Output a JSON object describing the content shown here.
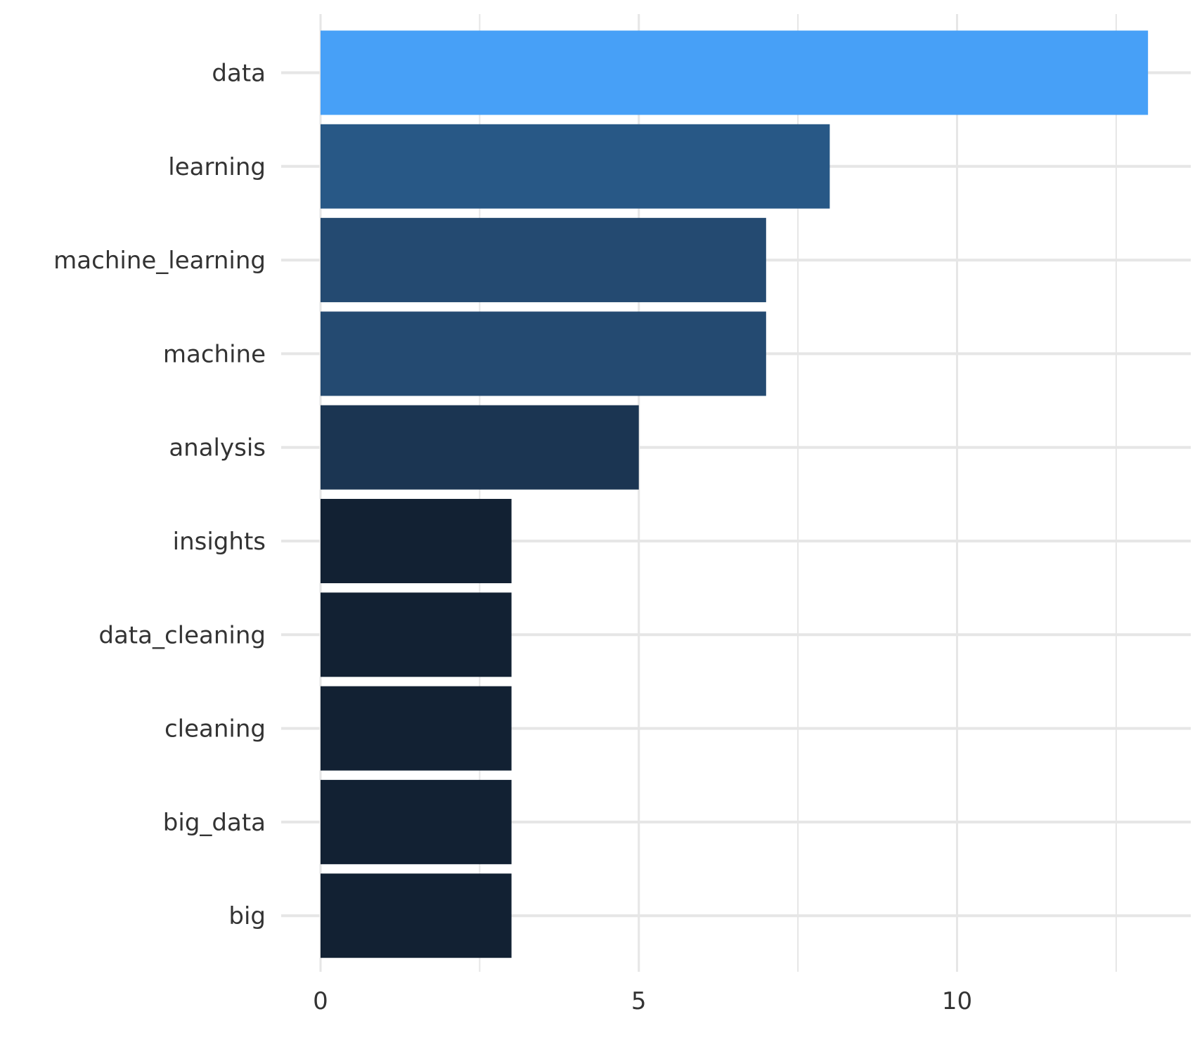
{
  "chart_data": {
    "type": "bar",
    "orientation": "horizontal",
    "categories": [
      "data",
      "learning",
      "machine_learning",
      "machine",
      "analysis",
      "insights",
      "data_cleaning",
      "cleaning",
      "big_data",
      "big"
    ],
    "values": [
      13,
      8,
      7,
      7,
      5,
      3,
      3,
      3,
      3,
      3
    ],
    "xlim": [
      0,
      13.8
    ],
    "xticks": [
      0,
      5,
      10
    ],
    "xtick_labels": [
      "0",
      "5",
      "10"
    ],
    "grid": true,
    "legend": "none",
    "color_scale": {
      "low": "#132132",
      "high": "#56b1f7"
    },
    "bar_colors": [
      "#47a0f7",
      "#285886",
      "#244a71",
      "#244a71",
      "#1b3552",
      "#122133",
      "#122133",
      "#122133",
      "#122133",
      "#122133"
    ],
    "grid_color": "#e6e6e6",
    "text_color": "#333333"
  }
}
